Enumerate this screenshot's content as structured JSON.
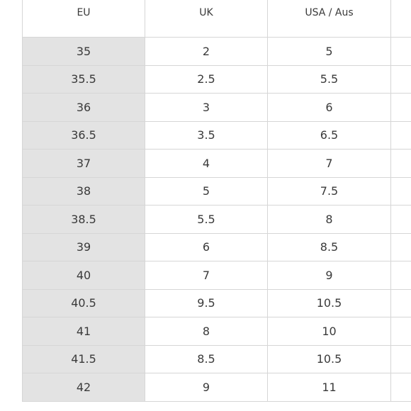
{
  "size_table": {
    "headers": [
      "EU",
      "UK",
      "USA / Aus",
      ""
    ],
    "rows": [
      [
        "35",
        "2",
        "5",
        ""
      ],
      [
        "35.5",
        "2.5",
        "5.5",
        ""
      ],
      [
        "36",
        "3",
        "6",
        ""
      ],
      [
        "36.5",
        "3.5",
        "6.5",
        ""
      ],
      [
        "37",
        "4",
        "7",
        ""
      ],
      [
        "38",
        "5",
        "7.5",
        ""
      ],
      [
        "38.5",
        "5.5",
        "8",
        ""
      ],
      [
        "39",
        "6",
        "8.5",
        ""
      ],
      [
        "40",
        "7",
        "9",
        ""
      ],
      [
        "40.5",
        "9.5",
        "10.5",
        ""
      ],
      [
        "41",
        "8",
        "10",
        ""
      ],
      [
        "41.5",
        "8.5",
        "10.5",
        ""
      ],
      [
        "42",
        "9",
        "11",
        ""
      ]
    ]
  },
  "colors": {
    "eu_column_background": "#e3e3e3",
    "border": "#d6d6d6",
    "text": "#3a3a3a"
  }
}
